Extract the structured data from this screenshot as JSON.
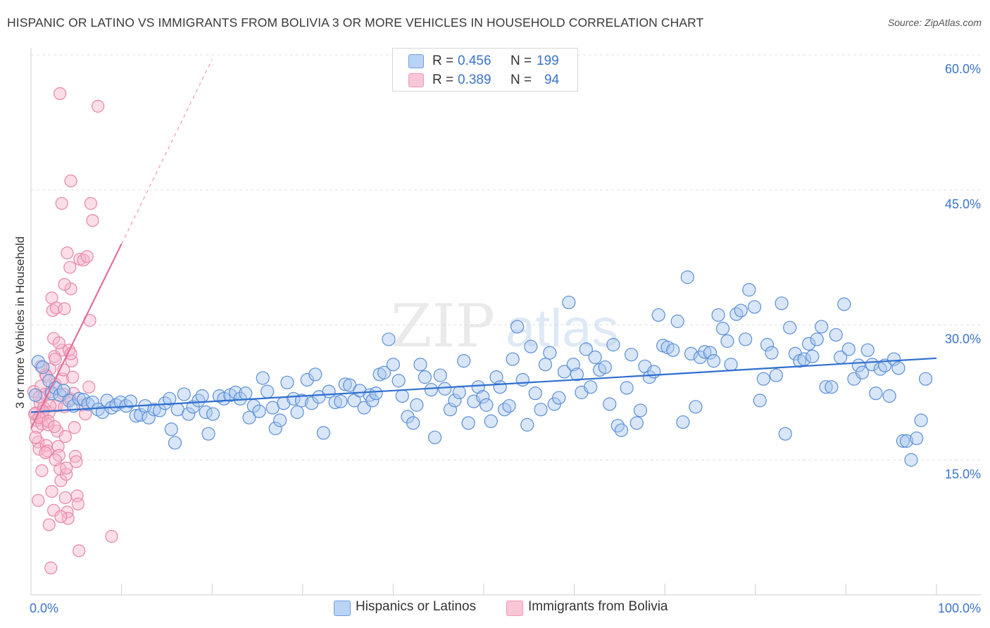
{
  "title": "HISPANIC OR LATINO VS IMMIGRANTS FROM BOLIVIA 3 OR MORE VEHICLES IN HOUSEHOLD CORRELATION CHART",
  "source": "Source: ZipAtlas.com",
  "watermark": {
    "zip": "ZIP",
    "atlas": "atlas"
  },
  "legend": {
    "r_label": "R =",
    "n_label": "N =",
    "rows": [
      {
        "series": "Hispanics or Latinos",
        "r": "0.456",
        "n": "199"
      },
      {
        "series": "Immigrants from Bolivia",
        "r": "0.389",
        "n": "94"
      }
    ]
  },
  "colors": {
    "blue_fill": "#a9c8f0",
    "blue_stroke": "#5b8fd6",
    "blue_line": "#2f6fcf",
    "pink_fill": "#f6b6cb",
    "pink_stroke": "#e886a6",
    "pink_line": "#e0709a",
    "axis_label": "#3a74c9",
    "grid": "#e0e0e0"
  },
  "chart_data": {
    "type": "scatter",
    "title": "HISPANIC OR LATINO VS IMMIGRANTS FROM BOLIVIA 3 OR MORE VEHICLES IN HOUSEHOLD CORRELATION CHART",
    "xlabel": "",
    "ylabel": "3 or more Vehicles in Household",
    "xlim": [
      0,
      100
    ],
    "ylim": [
      0,
      60
    ],
    "x_tick_labels": [
      "0.0%",
      "100.0%"
    ],
    "y_ticks": [
      15,
      30,
      45,
      60
    ],
    "y_tick_labels": [
      "15.0%",
      "30.0%",
      "45.0%",
      "60.0%"
    ],
    "grid": true,
    "series": [
      {
        "name": "Hispanics or Latinos",
        "trend": {
          "x": [
            0,
            100
          ],
          "y": [
            20.3,
            26.3
          ],
          "style": "solid"
        },
        "points": [
          [
            0.5,
            22.2
          ],
          [
            0.8,
            25.9
          ],
          [
            1.3,
            25.3
          ],
          [
            2.0,
            23.8
          ],
          [
            2.3,
            22.4
          ],
          [
            2.7,
            23.0
          ],
          [
            3.2,
            22.2
          ],
          [
            3.6,
            22.7
          ],
          [
            4.2,
            21.6
          ],
          [
            4.7,
            21.0
          ],
          [
            5.3,
            21.8
          ],
          [
            5.8,
            21.7
          ],
          [
            6.3,
            21.2
          ],
          [
            6.8,
            21.4
          ],
          [
            7.4,
            20.6
          ],
          [
            7.9,
            20.3
          ],
          [
            8.4,
            21.6
          ],
          [
            8.9,
            20.8
          ],
          [
            9.4,
            21.1
          ],
          [
            9.9,
            21.4
          ],
          [
            10.5,
            21.0
          ],
          [
            11.0,
            21.5
          ],
          [
            11.6,
            19.9
          ],
          [
            12.1,
            20.0
          ],
          [
            12.6,
            21.0
          ],
          [
            13.0,
            19.7
          ],
          [
            13.6,
            20.6
          ],
          [
            14.2,
            20.5
          ],
          [
            14.8,
            21.3
          ],
          [
            15.3,
            21.8
          ],
          [
            15.5,
            18.4
          ],
          [
            15.9,
            16.9
          ],
          [
            16.2,
            20.6
          ],
          [
            16.9,
            22.3
          ],
          [
            17.4,
            20.1
          ],
          [
            17.9,
            20.9
          ],
          [
            18.5,
            21.6
          ],
          [
            18.9,
            22.1
          ],
          [
            19.3,
            20.3
          ],
          [
            19.6,
            17.9
          ],
          [
            20.1,
            20.1
          ],
          [
            20.8,
            22.1
          ],
          [
            21.3,
            21.8
          ],
          [
            22.0,
            22.2
          ],
          [
            22.6,
            22.5
          ],
          [
            23.1,
            21.8
          ],
          [
            23.7,
            22.4
          ],
          [
            24.1,
            19.7
          ],
          [
            24.6,
            21.0
          ],
          [
            25.2,
            20.4
          ],
          [
            25.6,
            24.1
          ],
          [
            26.1,
            22.6
          ],
          [
            26.7,
            20.8
          ],
          [
            27.0,
            18.5
          ],
          [
            27.5,
            19.4
          ],
          [
            27.9,
            21.3
          ],
          [
            28.3,
            23.6
          ],
          [
            29.0,
            21.8
          ],
          [
            29.4,
            20.3
          ],
          [
            29.9,
            21.6
          ],
          [
            30.5,
            23.9
          ],
          [
            31.0,
            21.3
          ],
          [
            31.4,
            24.5
          ],
          [
            31.8,
            22.0
          ],
          [
            32.3,
            18.0
          ],
          [
            32.9,
            22.6
          ],
          [
            33.6,
            21.4
          ],
          [
            34.2,
            21.5
          ],
          [
            34.7,
            23.4
          ],
          [
            35.2,
            23.3
          ],
          [
            35.7,
            21.6
          ],
          [
            36.3,
            22.7
          ],
          [
            36.8,
            20.8
          ],
          [
            37.4,
            22.2
          ],
          [
            37.7,
            21.6
          ],
          [
            38.1,
            22.4
          ],
          [
            38.5,
            24.5
          ],
          [
            39.0,
            24.7
          ],
          [
            39.5,
            28.4
          ],
          [
            40.0,
            25.6
          ],
          [
            40.6,
            23.8
          ],
          [
            41.0,
            22.1
          ],
          [
            41.6,
            19.8
          ],
          [
            42.2,
            19.1
          ],
          [
            42.6,
            21.1
          ],
          [
            43.0,
            25.6
          ],
          [
            43.5,
            24.2
          ],
          [
            44.2,
            22.8
          ],
          [
            44.6,
            17.5
          ],
          [
            45.2,
            24.4
          ],
          [
            45.7,
            22.9
          ],
          [
            46.3,
            20.6
          ],
          [
            46.8,
            21.6
          ],
          [
            47.3,
            22.5
          ],
          [
            47.8,
            26.0
          ],
          [
            48.3,
            19.1
          ],
          [
            48.9,
            21.5
          ],
          [
            49.4,
            23.1
          ],
          [
            49.9,
            22.0
          ],
          [
            50.3,
            21.1
          ],
          [
            50.8,
            19.3
          ],
          [
            51.4,
            24.2
          ],
          [
            51.8,
            23.1
          ],
          [
            52.3,
            20.6
          ],
          [
            52.8,
            21.0
          ],
          [
            53.2,
            26.2
          ],
          [
            53.7,
            29.8
          ],
          [
            54.3,
            23.9
          ],
          [
            54.8,
            18.9
          ],
          [
            55.2,
            27.6
          ],
          [
            55.7,
            22.4
          ],
          [
            56.3,
            20.6
          ],
          [
            56.8,
            25.6
          ],
          [
            57.3,
            26.9
          ],
          [
            57.8,
            21.2
          ],
          [
            58.3,
            21.9
          ],
          [
            58.9,
            24.8
          ],
          [
            59.4,
            32.5
          ],
          [
            59.9,
            25.6
          ],
          [
            60.3,
            24.5
          ],
          [
            60.8,
            22.5
          ],
          [
            61.3,
            27.3
          ],
          [
            61.8,
            23.1
          ],
          [
            62.3,
            26.4
          ],
          [
            62.8,
            25.0
          ],
          [
            63.4,
            25.3
          ],
          [
            63.9,
            21.2
          ],
          [
            64.3,
            27.8
          ],
          [
            64.8,
            18.8
          ],
          [
            65.2,
            18.3
          ],
          [
            65.8,
            23.0
          ],
          [
            66.3,
            26.7
          ],
          [
            66.9,
            19.1
          ],
          [
            67.3,
            20.5
          ],
          [
            67.8,
            25.4
          ],
          [
            68.3,
            24.2
          ],
          [
            68.8,
            24.8
          ],
          [
            69.3,
            31.1
          ],
          [
            69.8,
            27.7
          ],
          [
            70.3,
            27.5
          ],
          [
            70.9,
            27.2
          ],
          [
            71.4,
            30.4
          ],
          [
            72.0,
            19.2
          ],
          [
            72.5,
            35.3
          ],
          [
            72.9,
            26.8
          ],
          [
            73.4,
            20.9
          ],
          [
            73.9,
            26.4
          ],
          [
            74.4,
            27.0
          ],
          [
            75.0,
            26.9
          ],
          [
            75.4,
            26.0
          ],
          [
            75.9,
            31.1
          ],
          [
            76.4,
            29.6
          ],
          [
            76.9,
            28.2
          ],
          [
            77.3,
            25.6
          ],
          [
            77.9,
            31.2
          ],
          [
            78.4,
            31.6
          ],
          [
            78.9,
            28.4
          ],
          [
            79.3,
            33.9
          ],
          [
            79.9,
            32.0
          ],
          [
            80.5,
            21.6
          ],
          [
            80.9,
            24.0
          ],
          [
            81.3,
            27.8
          ],
          [
            81.8,
            26.9
          ],
          [
            82.3,
            24.4
          ],
          [
            82.9,
            32.4
          ],
          [
            83.3,
            17.9
          ],
          [
            83.8,
            29.7
          ],
          [
            84.4,
            26.8
          ],
          [
            84.9,
            26.0
          ],
          [
            85.4,
            26.2
          ],
          [
            85.9,
            27.9
          ],
          [
            86.3,
            26.5
          ],
          [
            86.8,
            28.4
          ],
          [
            87.3,
            29.8
          ],
          [
            87.8,
            23.1
          ],
          [
            88.4,
            23.1
          ],
          [
            88.9,
            28.9
          ],
          [
            89.4,
            26.4
          ],
          [
            89.8,
            32.3
          ],
          [
            90.3,
            27.3
          ],
          [
            90.9,
            24.0
          ],
          [
            91.4,
            25.5
          ],
          [
            91.8,
            24.7
          ],
          [
            92.4,
            27.2
          ],
          [
            92.9,
            25.6
          ],
          [
            93.3,
            22.4
          ],
          [
            93.8,
            25.1
          ],
          [
            94.3,
            25.5
          ],
          [
            94.8,
            22.1
          ],
          [
            95.3,
            26.2
          ],
          [
            95.8,
            25.2
          ],
          [
            96.3,
            17.1
          ],
          [
            96.7,
            17.1
          ],
          [
            97.2,
            15.0
          ],
          [
            97.8,
            17.4
          ],
          [
            98.3,
            19.4
          ],
          [
            98.8,
            24.0
          ]
        ]
      },
      {
        "name": "Immigrants from Bolivia",
        "trend": {
          "x": [
            0,
            10
          ],
          "y": [
            18.5,
            39.0
          ],
          "x_dashed_to": 20,
          "y_dashed_to": 59.5,
          "style": "solid+dashed"
        },
        "points": [
          [
            0.3,
            22.6
          ],
          [
            0.5,
            20.2
          ],
          [
            0.6,
            19.4
          ],
          [
            0.7,
            18.6
          ],
          [
            0.8,
            17.0
          ],
          [
            0.9,
            16.2
          ],
          [
            1.0,
            21.3
          ],
          [
            1.1,
            23.2
          ],
          [
            1.2,
            19.0
          ],
          [
            1.3,
            19.9
          ],
          [
            1.4,
            20.8
          ],
          [
            1.5,
            22.3
          ],
          [
            1.6,
            24.5
          ],
          [
            1.7,
            16.6
          ],
          [
            1.8,
            16.0
          ],
          [
            1.9,
            18.9
          ],
          [
            2.0,
            20.3
          ],
          [
            2.1,
            25.1
          ],
          [
            2.2,
            22.6
          ],
          [
            2.3,
            33.0
          ],
          [
            2.4,
            31.6
          ],
          [
            2.5,
            28.5
          ],
          [
            2.6,
            26.5
          ],
          [
            2.7,
            23.4
          ],
          [
            2.8,
            21.0
          ],
          [
            2.9,
            18.2
          ],
          [
            3.0,
            16.5
          ],
          [
            3.1,
            15.5
          ],
          [
            3.2,
            14.0
          ],
          [
            3.3,
            12.7
          ],
          [
            3.4,
            27.2
          ],
          [
            3.5,
            24.0
          ],
          [
            3.6,
            22.3
          ],
          [
            3.7,
            20.9
          ],
          [
            3.8,
            17.6
          ],
          [
            3.9,
            13.4
          ],
          [
            4.0,
            9.2
          ],
          [
            4.1,
            8.5
          ],
          [
            4.2,
            27.2
          ],
          [
            4.3,
            36.4
          ],
          [
            4.4,
            34.0
          ],
          [
            4.5,
            26.0
          ],
          [
            4.6,
            24.2
          ],
          [
            4.7,
            22.4
          ],
          [
            4.8,
            18.6
          ],
          [
            4.9,
            15.4
          ],
          [
            5.0,
            14.8
          ],
          [
            5.1,
            11.0
          ],
          [
            5.2,
            10.1
          ],
          [
            5.3,
            4.9
          ],
          [
            3.2,
            55.7
          ],
          [
            7.4,
            54.3
          ],
          [
            3.4,
            43.5
          ],
          [
            4.4,
            46.0
          ],
          [
            6.6,
            43.5
          ],
          [
            6.8,
            41.6
          ],
          [
            5.4,
            37.3
          ],
          [
            5.8,
            37.2
          ],
          [
            6.2,
            37.6
          ],
          [
            4.0,
            38.0
          ],
          [
            3.7,
            34.5
          ],
          [
            2.8,
            31.9
          ],
          [
            3.7,
            31.8
          ],
          [
            6.5,
            30.5
          ],
          [
            3.1,
            28.0
          ],
          [
            4.4,
            26.8
          ],
          [
            2.7,
            26.2
          ],
          [
            1.1,
            25.4
          ],
          [
            3.6,
            25.0
          ],
          [
            1.7,
            24.3
          ],
          [
            6.4,
            23.1
          ],
          [
            0.9,
            22.0
          ],
          [
            4.3,
            21.8
          ],
          [
            2.1,
            21.0
          ],
          [
            5.7,
            21.1
          ],
          [
            1.3,
            20.4
          ],
          [
            0.4,
            20.1
          ],
          [
            6.0,
            20.1
          ],
          [
            0.9,
            19.7
          ],
          [
            1.9,
            19.3
          ],
          [
            2.6,
            18.7
          ],
          [
            0.5,
            17.5
          ],
          [
            1.6,
            15.8
          ],
          [
            2.7,
            15.0
          ],
          [
            3.9,
            14.1
          ],
          [
            1.2,
            13.8
          ],
          [
            2.3,
            11.5
          ],
          [
            3.8,
            10.8
          ],
          [
            0.8,
            10.5
          ],
          [
            2.5,
            9.4
          ],
          [
            3.3,
            8.7
          ],
          [
            2.0,
            7.8
          ],
          [
            8.9,
            6.5
          ],
          [
            2.2,
            3.0
          ]
        ]
      }
    ]
  }
}
